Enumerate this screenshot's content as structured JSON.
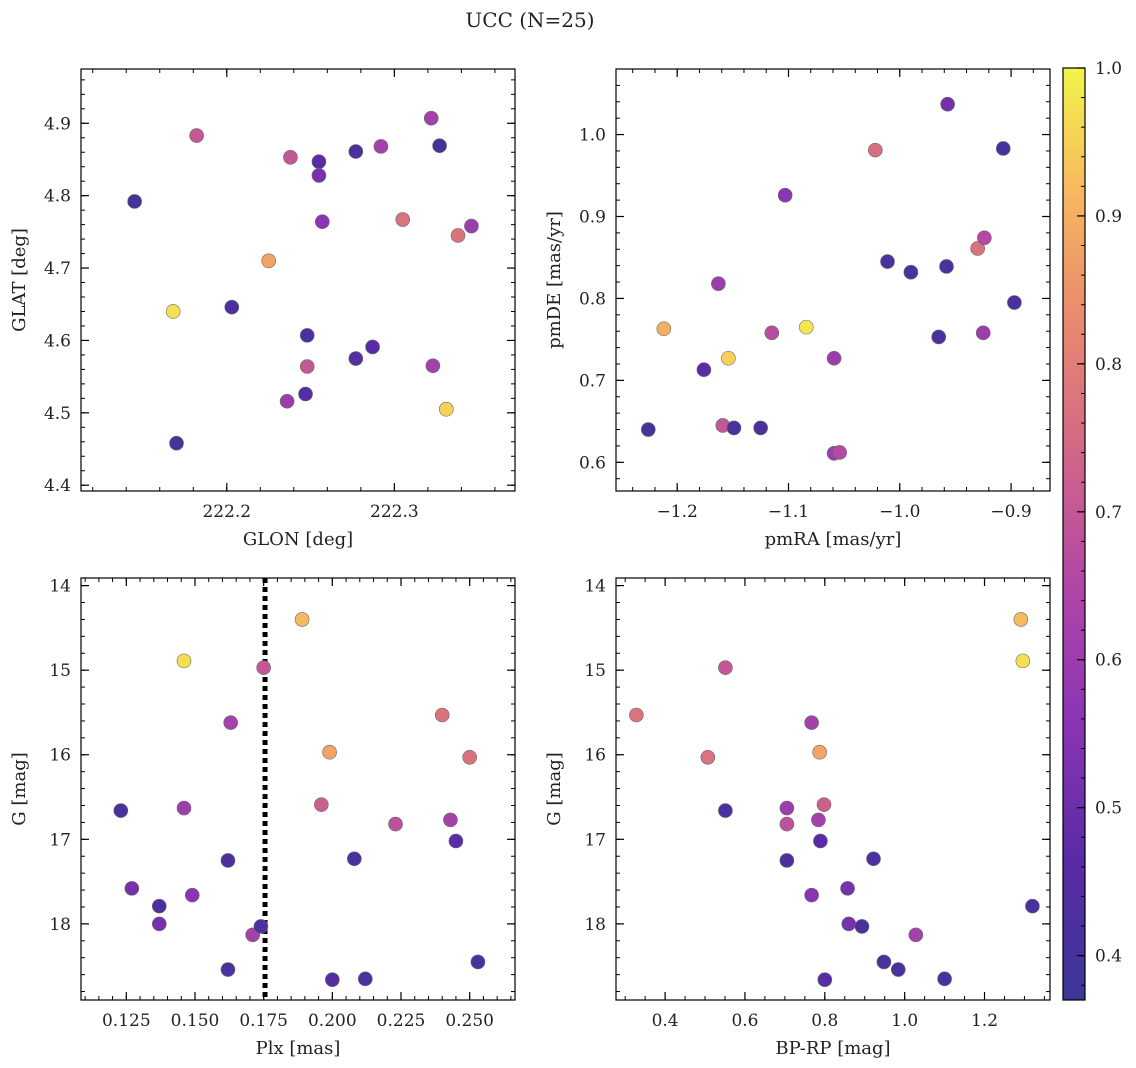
{
  "title": "UCC (N=25)",
  "colorbar": {
    "min": 0.37,
    "max": 1.0,
    "ticks": [
      0.4,
      0.5,
      0.6,
      0.7,
      0.8,
      0.9,
      1.0
    ],
    "tick_labels": [
      "0.4",
      "0.5",
      "0.6",
      "0.7",
      "0.8",
      "0.9",
      "1.0"
    ],
    "colormap": "plasma"
  },
  "chart_data": [
    {
      "type": "scatter",
      "id": "glon-glat",
      "xlabel": "GLON [deg]",
      "ylabel": "GLAT [deg]",
      "xlim": [
        222.113,
        222.372
      ],
      "ylim": [
        4.392,
        4.975
      ],
      "invert_y": false,
      "xticks": [
        222.2,
        222.3
      ],
      "xtick_labels": [
        "222.2",
        "222.3"
      ],
      "yticks": [
        4.4,
        4.5,
        4.6,
        4.7,
        4.8,
        4.9
      ],
      "ytick_labels": [
        "4.4",
        "4.5",
        "4.6",
        "4.7",
        "4.8",
        "4.9"
      ],
      "x_minor_step": 0.02,
      "y_minor_step": 0.02,
      "points": [
        {
          "x": 222.145,
          "y": 4.792,
          "c": 0.4
        },
        {
          "x": 222.182,
          "y": 4.883,
          "c": 0.7
        },
        {
          "x": 222.168,
          "y": 4.64,
          "c": 0.97
        },
        {
          "x": 222.17,
          "y": 4.458,
          "c": 0.4
        },
        {
          "x": 222.203,
          "y": 4.646,
          "c": 0.43
        },
        {
          "x": 222.225,
          "y": 4.71,
          "c": 0.88
        },
        {
          "x": 222.238,
          "y": 4.853,
          "c": 0.7
        },
        {
          "x": 222.236,
          "y": 4.516,
          "c": 0.6
        },
        {
          "x": 222.247,
          "y": 4.526,
          "c": 0.45
        },
        {
          "x": 222.248,
          "y": 4.564,
          "c": 0.7
        },
        {
          "x": 222.248,
          "y": 4.607,
          "c": 0.42
        },
        {
          "x": 222.255,
          "y": 4.847,
          "c": 0.46
        },
        {
          "x": 222.255,
          "y": 4.828,
          "c": 0.52
        },
        {
          "x": 222.257,
          "y": 4.764,
          "c": 0.56
        },
        {
          "x": 222.277,
          "y": 4.861,
          "c": 0.42
        },
        {
          "x": 222.277,
          "y": 4.575,
          "c": 0.45
        },
        {
          "x": 222.287,
          "y": 4.591,
          "c": 0.46
        },
        {
          "x": 222.292,
          "y": 4.868,
          "c": 0.62
        },
        {
          "x": 222.305,
          "y": 4.767,
          "c": 0.77
        },
        {
          "x": 222.322,
          "y": 4.907,
          "c": 0.62
        },
        {
          "x": 222.323,
          "y": 4.565,
          "c": 0.62
        },
        {
          "x": 222.327,
          "y": 4.869,
          "c": 0.4
        },
        {
          "x": 222.331,
          "y": 4.505,
          "c": 0.95
        },
        {
          "x": 222.338,
          "y": 4.745,
          "c": 0.77
        },
        {
          "x": 222.346,
          "y": 4.758,
          "c": 0.6
        }
      ]
    },
    {
      "type": "scatter",
      "id": "pmra-pmde",
      "xlabel": "pmRA [mas/yr]",
      "ylabel": "pmDE [mas/yr]",
      "xlim": [
        -1.255,
        -0.865
      ],
      "ylim": [
        0.565,
        1.08
      ],
      "invert_y": false,
      "xticks": [
        -1.2,
        -1.1,
        -1.0,
        -0.9
      ],
      "xtick_labels": [
        "−1.2",
        "−1.1",
        "−1.0",
        "−0.9"
      ],
      "yticks": [
        0.6,
        0.7,
        0.8,
        0.9,
        1.0
      ],
      "ytick_labels": [
        "0.6",
        "0.7",
        "0.8",
        "0.9",
        "1.0"
      ],
      "x_minor_step": 0.02,
      "y_minor_step": 0.02,
      "points": [
        {
          "x": -1.226,
          "y": 0.64,
          "c": 0.4
        },
        {
          "x": -1.212,
          "y": 0.763,
          "c": 0.9
        },
        {
          "x": -1.176,
          "y": 0.713,
          "c": 0.46
        },
        {
          "x": -1.163,
          "y": 0.818,
          "c": 0.6
        },
        {
          "x": -1.159,
          "y": 0.645,
          "c": 0.7
        },
        {
          "x": -1.154,
          "y": 0.727,
          "c": 0.95
        },
        {
          "x": -1.149,
          "y": 0.642,
          "c": 0.42
        },
        {
          "x": -1.125,
          "y": 0.642,
          "c": 0.42
        },
        {
          "x": -1.115,
          "y": 0.758,
          "c": 0.67
        },
        {
          "x": -1.103,
          "y": 0.926,
          "c": 0.56
        },
        {
          "x": -1.084,
          "y": 0.765,
          "c": 0.98
        },
        {
          "x": -1.059,
          "y": 0.727,
          "c": 0.6
        },
        {
          "x": -1.059,
          "y": 0.611,
          "c": 0.6
        },
        {
          "x": -1.054,
          "y": 0.612,
          "c": 0.66
        },
        {
          "x": -1.022,
          "y": 0.981,
          "c": 0.76
        },
        {
          "x": -1.011,
          "y": 0.845,
          "c": 0.42
        },
        {
          "x": -0.99,
          "y": 0.832,
          "c": 0.42
        },
        {
          "x": -0.965,
          "y": 0.753,
          "c": 0.42
        },
        {
          "x": -0.958,
          "y": 0.839,
          "c": 0.42
        },
        {
          "x": -0.957,
          "y": 1.037,
          "c": 0.52
        },
        {
          "x": -0.93,
          "y": 0.861,
          "c": 0.77
        },
        {
          "x": -0.924,
          "y": 0.874,
          "c": 0.66
        },
        {
          "x": -0.925,
          "y": 0.758,
          "c": 0.6
        },
        {
          "x": -0.907,
          "y": 0.983,
          "c": 0.4
        },
        {
          "x": -0.897,
          "y": 0.795,
          "c": 0.42
        }
      ]
    },
    {
      "type": "scatter",
      "id": "plx-g",
      "xlabel": "Plx [mas]",
      "ylabel": "G [mag]",
      "xlim": [
        0.1085,
        0.2665
      ],
      "ylim": [
        13.91,
        18.9
      ],
      "invert_y": true,
      "xticks": [
        0.125,
        0.15,
        0.175,
        0.2,
        0.225,
        0.25
      ],
      "xtick_labels": [
        "0.125",
        "0.150",
        "0.175",
        "0.200",
        "0.225",
        "0.250"
      ],
      "yticks": [
        14,
        15,
        16,
        17,
        18
      ],
      "ytick_labels": [
        "14",
        "15",
        "16",
        "17",
        "18"
      ],
      "x_minor_step": 0.005,
      "y_minor_step": 0.2,
      "vline": {
        "x": 0.1755,
        "style": "dotted"
      },
      "points": [
        {
          "x": 0.123,
          "y": 16.66,
          "c": 0.42
        },
        {
          "x": 0.127,
          "y": 17.58,
          "c": 0.52
        },
        {
          "x": 0.137,
          "y": 17.79,
          "c": 0.42
        },
        {
          "x": 0.137,
          "y": 18.0,
          "c": 0.52
        },
        {
          "x": 0.146,
          "y": 14.89,
          "c": 0.97
        },
        {
          "x": 0.146,
          "y": 16.63,
          "c": 0.6
        },
        {
          "x": 0.149,
          "y": 17.66,
          "c": 0.56
        },
        {
          "x": 0.162,
          "y": 17.25,
          "c": 0.43
        },
        {
          "x": 0.162,
          "y": 18.54,
          "c": 0.42
        },
        {
          "x": 0.163,
          "y": 15.62,
          "c": 0.62
        },
        {
          "x": 0.171,
          "y": 18.13,
          "c": 0.62
        },
        {
          "x": 0.174,
          "y": 18.03,
          "c": 0.42
        },
        {
          "x": 0.175,
          "y": 14.97,
          "c": 0.7
        },
        {
          "x": 0.189,
          "y": 14.4,
          "c": 0.92
        },
        {
          "x": 0.196,
          "y": 16.59,
          "c": 0.72
        },
        {
          "x": 0.199,
          "y": 15.97,
          "c": 0.88
        },
        {
          "x": 0.2,
          "y": 18.66,
          "c": 0.45
        },
        {
          "x": 0.208,
          "y": 17.23,
          "c": 0.42
        },
        {
          "x": 0.212,
          "y": 18.65,
          "c": 0.42
        },
        {
          "x": 0.223,
          "y": 16.82,
          "c": 0.68
        },
        {
          "x": 0.24,
          "y": 15.53,
          "c": 0.77
        },
        {
          "x": 0.243,
          "y": 16.77,
          "c": 0.62
        },
        {
          "x": 0.245,
          "y": 17.02,
          "c": 0.46
        },
        {
          "x": 0.25,
          "y": 16.03,
          "c": 0.77
        },
        {
          "x": 0.253,
          "y": 18.45,
          "c": 0.42
        }
      ]
    },
    {
      "type": "scatter",
      "id": "bprp-g",
      "xlabel": "BP-RP [mag]",
      "ylabel": "G [mag]",
      "xlim": [
        0.277,
        1.364
      ],
      "ylim": [
        13.91,
        18.9
      ],
      "invert_y": true,
      "xticks": [
        0.4,
        0.6,
        0.8,
        1.0,
        1.2
      ],
      "xtick_labels": [
        "0.4",
        "0.6",
        "0.8",
        "1.0",
        "1.2"
      ],
      "yticks": [
        14,
        15,
        16,
        17,
        18
      ],
      "ytick_labels": [
        "14",
        "15",
        "16",
        "17",
        "18"
      ],
      "x_minor_step": 0.05,
      "y_minor_step": 0.2,
      "points": [
        {
          "x": 0.328,
          "y": 15.53,
          "c": 0.77
        },
        {
          "x": 0.507,
          "y": 16.03,
          "c": 0.77
        },
        {
          "x": 0.551,
          "y": 14.97,
          "c": 0.7
        },
        {
          "x": 0.551,
          "y": 16.66,
          "c": 0.42
        },
        {
          "x": 0.705,
          "y": 16.63,
          "c": 0.6
        },
        {
          "x": 0.705,
          "y": 16.82,
          "c": 0.68
        },
        {
          "x": 0.705,
          "y": 17.25,
          "c": 0.43
        },
        {
          "x": 0.767,
          "y": 15.62,
          "c": 0.62
        },
        {
          "x": 0.767,
          "y": 17.66,
          "c": 0.56
        },
        {
          "x": 0.784,
          "y": 16.77,
          "c": 0.62
        },
        {
          "x": 0.787,
          "y": 15.97,
          "c": 0.88
        },
        {
          "x": 0.789,
          "y": 17.02,
          "c": 0.46
        },
        {
          "x": 0.798,
          "y": 16.59,
          "c": 0.72
        },
        {
          "x": 0.8,
          "y": 18.66,
          "c": 0.45
        },
        {
          "x": 0.857,
          "y": 17.58,
          "c": 0.52
        },
        {
          "x": 0.86,
          "y": 18.0,
          "c": 0.52
        },
        {
          "x": 0.893,
          "y": 18.03,
          "c": 0.42
        },
        {
          "x": 0.922,
          "y": 17.23,
          "c": 0.42
        },
        {
          "x": 0.948,
          "y": 18.45,
          "c": 0.42
        },
        {
          "x": 0.984,
          "y": 18.54,
          "c": 0.42
        },
        {
          "x": 1.028,
          "y": 18.13,
          "c": 0.62
        },
        {
          "x": 1.1,
          "y": 18.65,
          "c": 0.42
        },
        {
          "x": 1.291,
          "y": 14.4,
          "c": 0.92
        },
        {
          "x": 1.296,
          "y": 14.89,
          "c": 0.97
        },
        {
          "x": 1.32,
          "y": 17.79,
          "c": 0.42
        }
      ]
    }
  ]
}
